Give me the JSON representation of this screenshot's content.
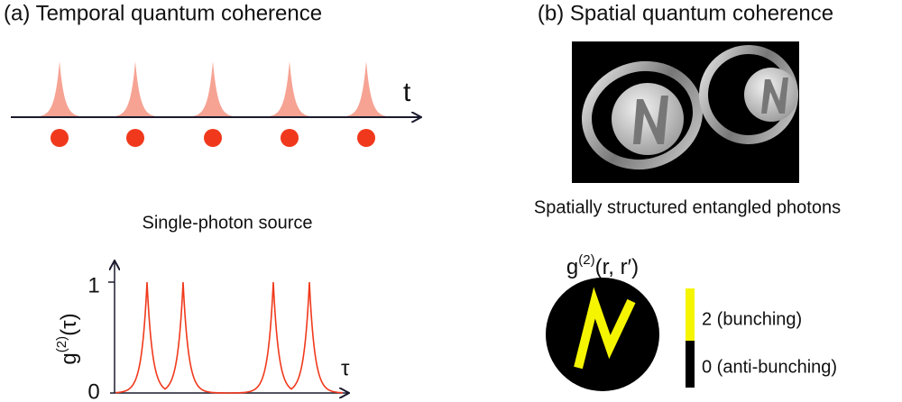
{
  "panel_a": {
    "title": "(a) Temporal quantum coherence",
    "time_label": "t",
    "source_label": "Single-photon source",
    "plot": {
      "y_label": {
        "base": "g",
        "superscript": "(2)",
        "argument": "(τ)"
      },
      "y_top": "1",
      "y_bottom": "0",
      "x_label": "τ"
    }
  },
  "panel_b": {
    "title": "(b) Spatial quantum coherence",
    "image_caption": "Spatially structured entangled photons",
    "map_label": {
      "base": "g",
      "superscript": "(2)",
      "argument": "(r, r′)"
    },
    "colorbar": {
      "top": "2 (bunching)",
      "bottom": "0 (anti-bunching)"
    }
  }
}
